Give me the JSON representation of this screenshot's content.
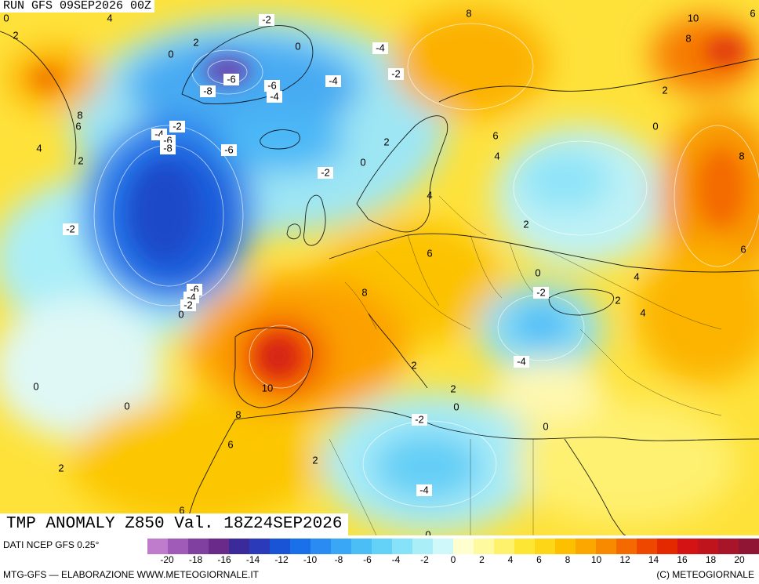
{
  "header": {
    "run": "RUN GFS 09SEP2026 00Z"
  },
  "title": "TMP ANOMALY Z850 Val. 18Z24SEP2026",
  "footer": {
    "source": "DATI NCEP GFS 0.25°",
    "elaboration": "MTG-GFS — ELABORAZIONE WWW.METEOGIORNALE.IT",
    "copyright": "(C) METEOGIORNALE"
  },
  "legend": {
    "colors": [
      "#c07ccc",
      "#a05ab8",
      "#8040a0",
      "#6a2a8a",
      "#3a2a9a",
      "#2a3ab8",
      "#1a54d6",
      "#1a70e8",
      "#2a8cf2",
      "#3aa6f6",
      "#4cbef6",
      "#64d2f6",
      "#86e2f8",
      "#aaeef8",
      "#cef8fa",
      "#fefece",
      "#fefaa0",
      "#fef26c",
      "#fee634",
      "#fed618",
      "#fcc000",
      "#fca600",
      "#f88a00",
      "#f46a00",
      "#ee4800",
      "#e42800",
      "#d41414",
      "#c0141c",
      "#a81428",
      "#901434"
    ],
    "tick_labels": [
      "-20",
      "-18",
      "-16",
      "-14",
      "-12",
      "-10",
      "-8",
      "-6",
      "-4",
      "-2",
      "0",
      "2",
      "4",
      "6",
      "8",
      "10",
      "12",
      "14",
      "16",
      "18",
      "20"
    ]
  },
  "map_labels": [
    {
      "t": "0"
    },
    {
      "t": "4"
    },
    {
      "t": "2"
    },
    {
      "t": "-2"
    },
    {
      "t": "8"
    },
    {
      "t": "10"
    },
    {
      "t": "8"
    },
    {
      "t": "6"
    },
    {
      "t": "0"
    },
    {
      "t": "0"
    },
    {
      "t": "2"
    },
    {
      "t": "-4"
    },
    {
      "t": "-2"
    },
    {
      "t": "-6"
    },
    {
      "t": "-4"
    },
    {
      "t": "-8"
    },
    {
      "t": "-4"
    },
    {
      "t": "-6"
    },
    {
      "t": "8"
    },
    {
      "t": "6"
    },
    {
      "t": "4"
    },
    {
      "t": "2"
    },
    {
      "t": "-4"
    },
    {
      "t": "-2"
    },
    {
      "t": "-6"
    },
    {
      "t": "-8"
    },
    {
      "t": "-6"
    },
    {
      "t": "2"
    },
    {
      "t": "0"
    },
    {
      "t": "-2"
    },
    {
      "t": "6"
    },
    {
      "t": "4"
    },
    {
      "t": "0"
    },
    {
      "t": "2"
    },
    {
      "t": "8"
    },
    {
      "t": "-2"
    },
    {
      "t": "4"
    },
    {
      "t": "2"
    },
    {
      "t": "6"
    },
    {
      "t": "0"
    },
    {
      "t": "-2"
    },
    {
      "t": "8"
    },
    {
      "t": "-6"
    },
    {
      "t": "-4"
    },
    {
      "t": "-2"
    },
    {
      "t": "0"
    },
    {
      "t": "4"
    },
    {
      "t": "2"
    },
    {
      "t": "4"
    },
    {
      "t": "-4"
    },
    {
      "t": "10"
    },
    {
      "t": "0"
    },
    {
      "t": "0"
    },
    {
      "t": "2"
    },
    {
      "t": "0"
    },
    {
      "t": "8"
    },
    {
      "t": "-2"
    },
    {
      "t": "0"
    },
    {
      "t": "6"
    },
    {
      "t": "2"
    },
    {
      "t": "2"
    },
    {
      "t": "-4"
    },
    {
      "t": "6"
    },
    {
      "t": "0"
    },
    {
      "t": "2"
    },
    {
      "t": "6"
    }
  ]
}
